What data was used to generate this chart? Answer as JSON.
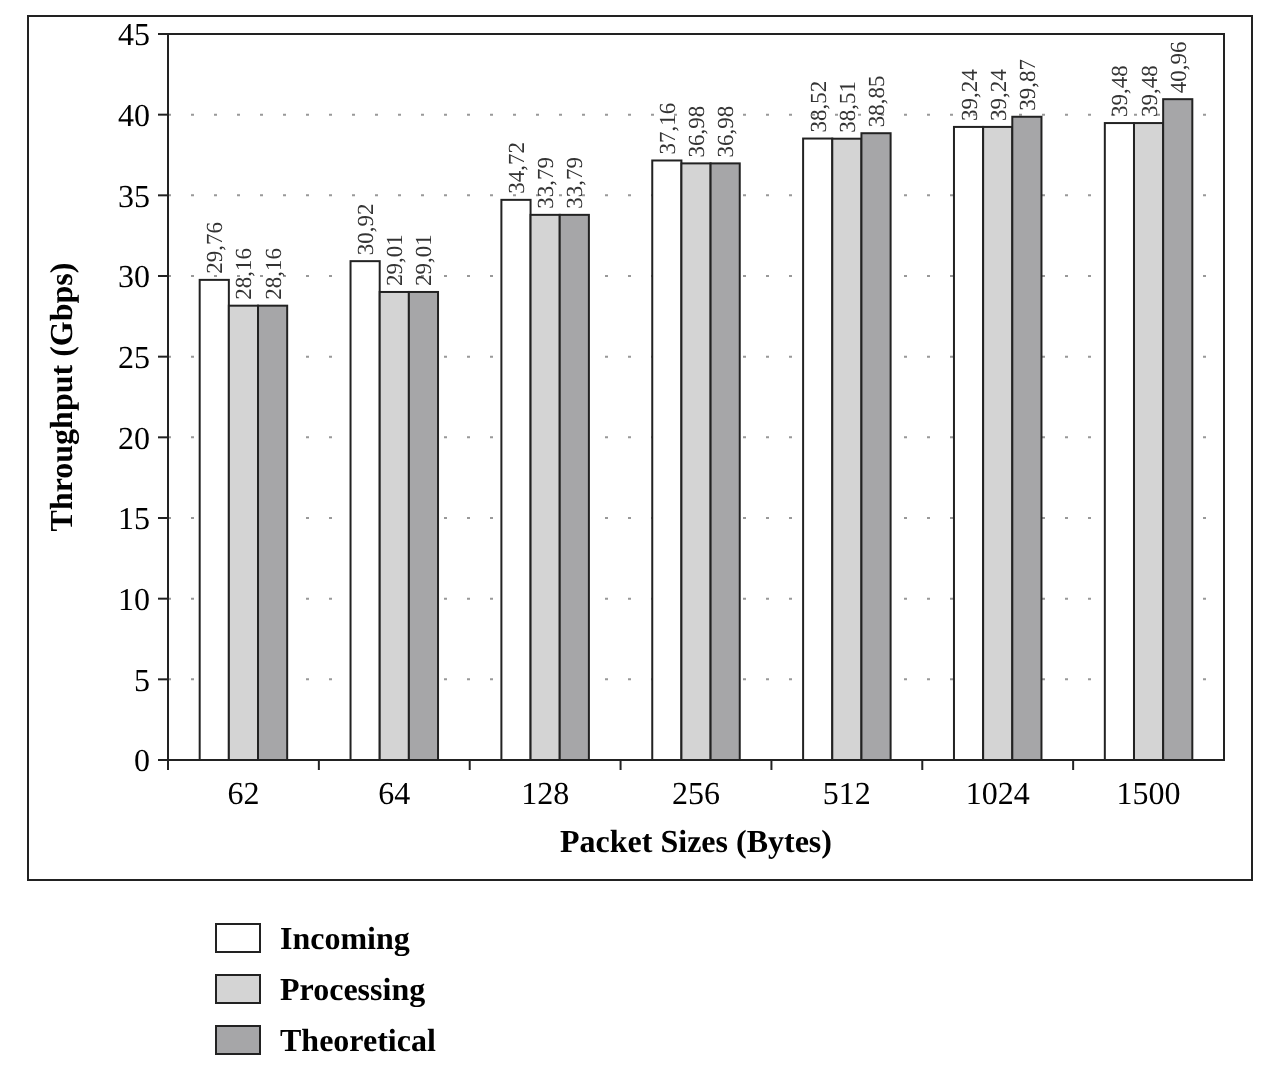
{
  "chart_data": {
    "type": "bar",
    "xlabel": "Packet Sizes (Bytes)",
    "ylabel": "Throughput (Gbps)",
    "categories": [
      "62",
      "64",
      "128",
      "256",
      "512",
      "1024",
      "1500"
    ],
    "series": [
      {
        "name": "Incoming",
        "color": "#ffffff",
        "values": [
          29.76,
          30.92,
          34.72,
          37.16,
          38.52,
          39.24,
          39.48
        ],
        "value_labels": [
          "29,76",
          "30,92",
          "34,72",
          "37,16",
          "38,52",
          "39,24",
          "39,48"
        ]
      },
      {
        "name": "Processing",
        "color": "#d4d4d4",
        "values": [
          28.16,
          29.01,
          33.79,
          36.98,
          38.51,
          39.24,
          39.48
        ],
        "value_labels": [
          "28,16",
          "29,01",
          "33,79",
          "36,98",
          "38,51",
          "39,24",
          "39,48"
        ]
      },
      {
        "name": "Theoretical",
        "color": "#a6a6a8",
        "values": [
          28.16,
          29.01,
          33.79,
          36.98,
          38.85,
          39.87,
          40.96
        ],
        "value_labels": [
          "28,16",
          "29,01",
          "33,79",
          "36,98",
          "38,85",
          "39,87",
          "40,96"
        ]
      }
    ],
    "ylim": [
      0,
      45
    ],
    "yticks": [
      0,
      5,
      10,
      15,
      20,
      25,
      30,
      35,
      40,
      45
    ],
    "grid": "y",
    "legend": "bottom"
  }
}
